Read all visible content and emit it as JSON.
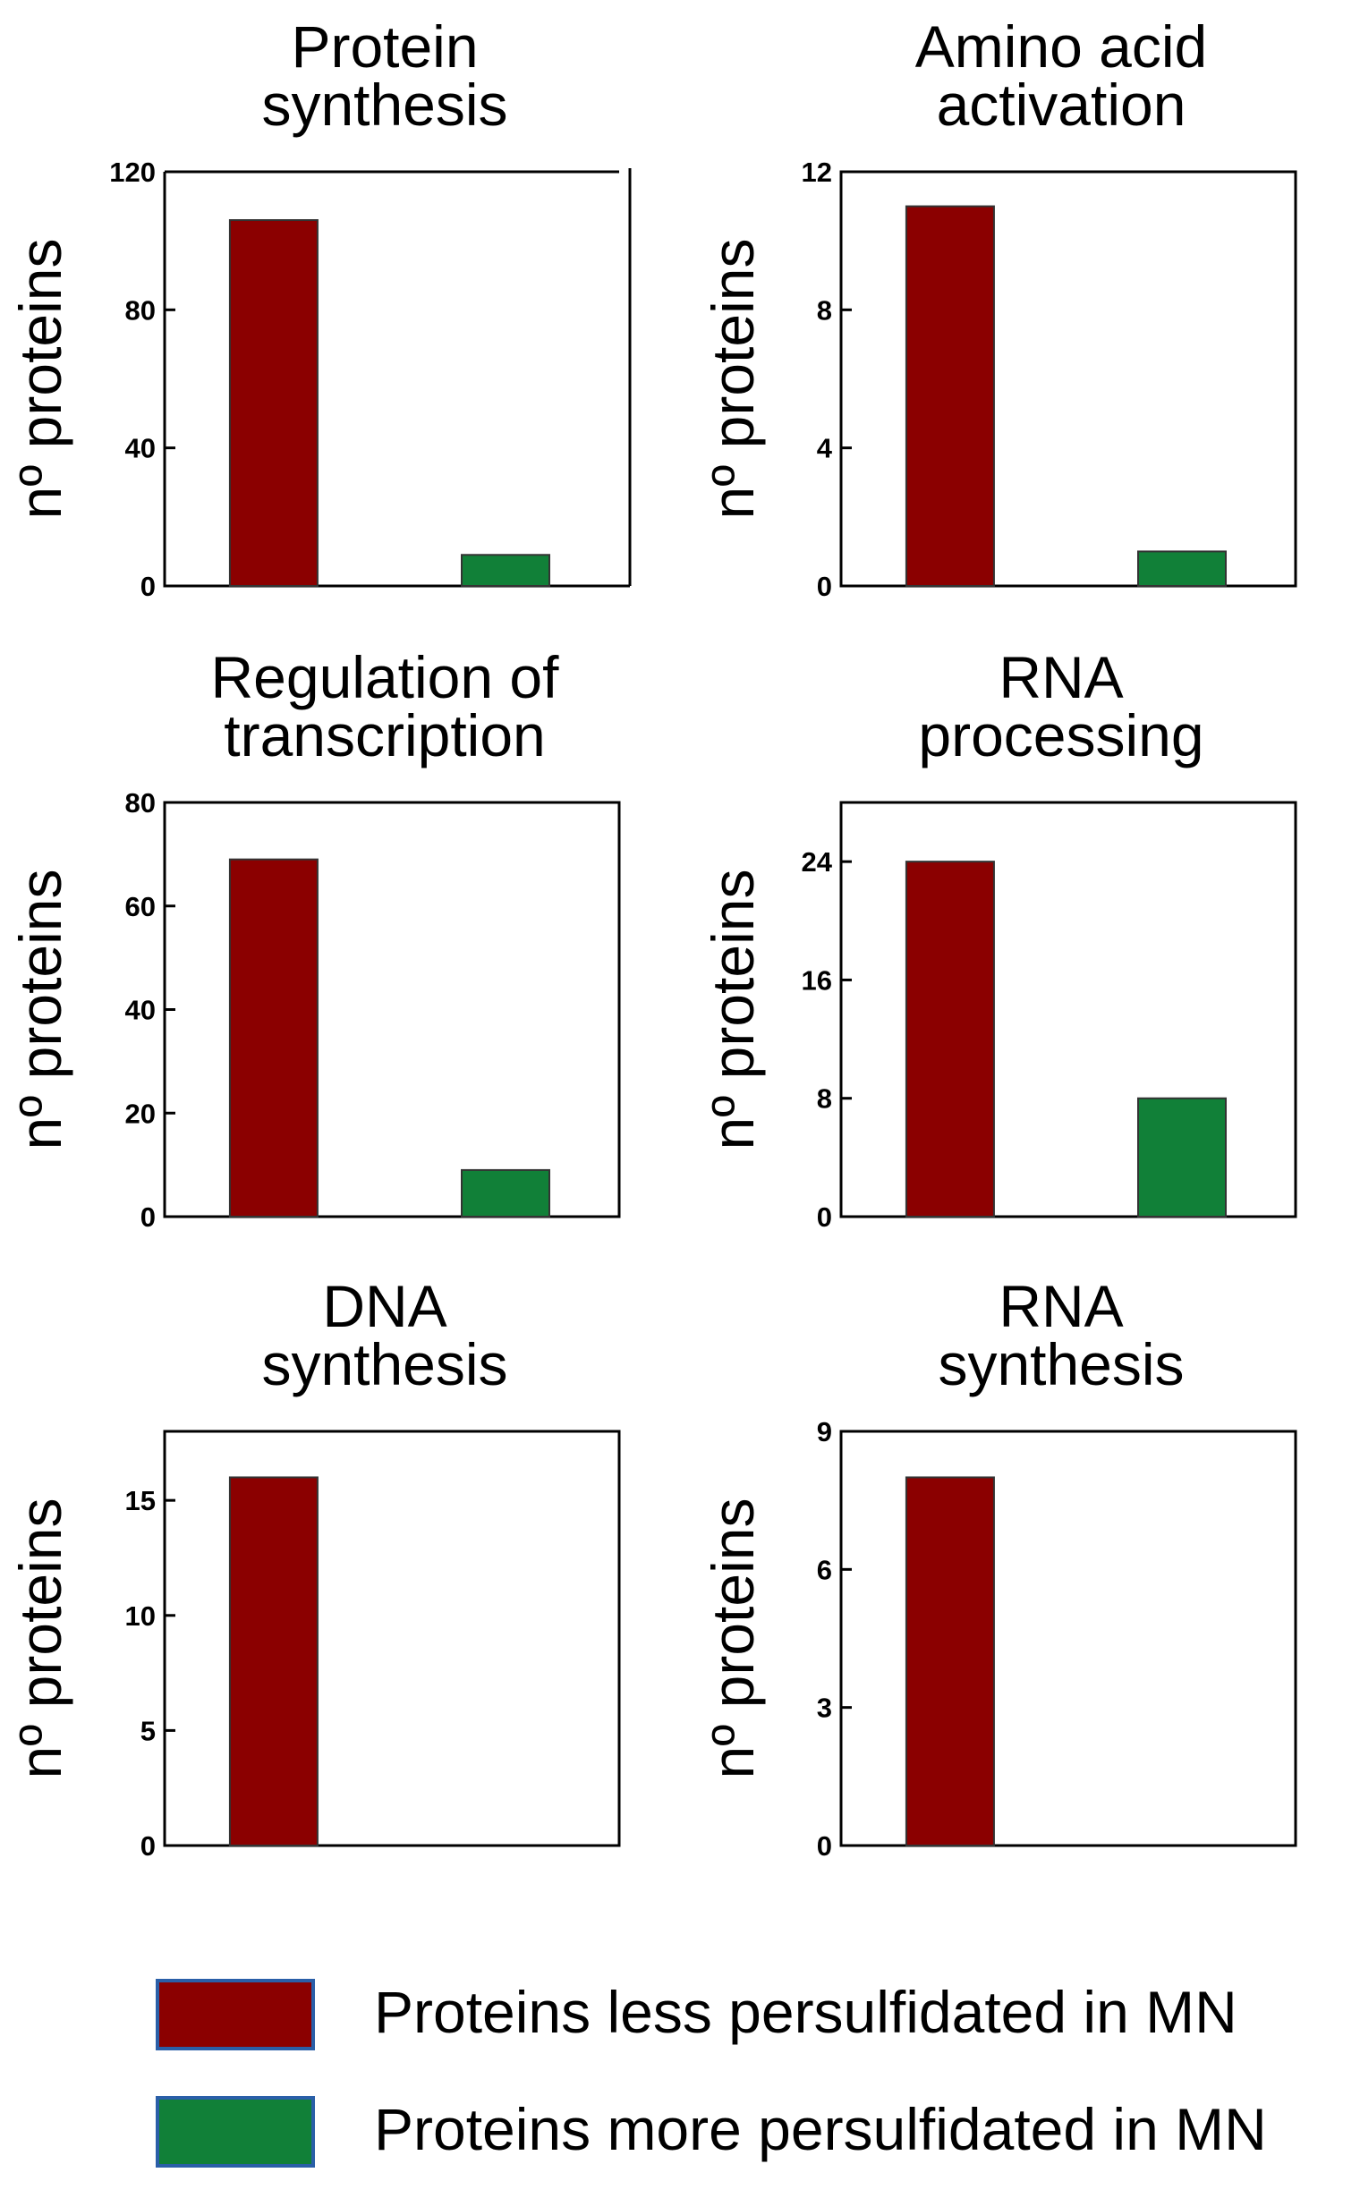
{
  "chart_data": [
    {
      "type": "bar",
      "title": [
        "Protein",
        "synthesis"
      ],
      "ylabel": "nº proteins",
      "categories": [
        "Proteins less persulfidated in MN",
        "Proteins more persulfidated in MN"
      ],
      "values": [
        106,
        9
      ],
      "ylim": [
        0,
        120
      ],
      "yticks": [
        0,
        40,
        80,
        120
      ]
    },
    {
      "type": "bar",
      "title": [
        "Amino acid",
        "activation"
      ],
      "ylabel": "nº proteins",
      "categories": [
        "Proteins less persulfidated in MN",
        "Proteins more persulfidated in MN"
      ],
      "values": [
        11,
        1
      ],
      "ylim": [
        0,
        12
      ],
      "yticks": [
        0,
        4,
        8,
        12
      ]
    },
    {
      "type": "bar",
      "title": [
        "Regulation of",
        "transcription"
      ],
      "ylabel": "nº proteins",
      "categories": [
        "Proteins less persulfidated in MN",
        "Proteins more persulfidated in MN"
      ],
      "values": [
        69,
        9
      ],
      "ylim": [
        0,
        80
      ],
      "yticks": [
        0,
        20,
        40,
        60,
        80
      ]
    },
    {
      "type": "bar",
      "title": [
        "RNA",
        "processing"
      ],
      "ylabel": "nº proteins",
      "categories": [
        "Proteins less persulfidated in MN",
        "Proteins more persulfidated in MN"
      ],
      "values": [
        24,
        8
      ],
      "ylim": [
        0,
        28
      ],
      "yticks": [
        0,
        8,
        16,
        24
      ]
    },
    {
      "type": "bar",
      "title": [
        "DNA",
        "synthesis"
      ],
      "ylabel": "nº proteins",
      "categories": [
        "Proteins less persulfidated in MN",
        "Proteins more persulfidated in MN"
      ],
      "values": [
        16,
        0
      ],
      "ylim": [
        0,
        18
      ],
      "yticks": [
        0,
        5,
        10,
        15
      ]
    },
    {
      "type": "bar",
      "title": [
        "RNA",
        "synthesis"
      ],
      "ylabel": "nº proteins",
      "categories": [
        "Proteins less persulfidated in MN",
        "Proteins more persulfidated in MN"
      ],
      "values": [
        8,
        0
      ],
      "ylim": [
        0,
        9
      ],
      "yticks": [
        0,
        3,
        6,
        9
      ]
    }
  ],
  "legend": {
    "items": [
      {
        "label": "Proteins less persulfidated in MN",
        "color": "#8b0000"
      },
      {
        "label": "Proteins more persulfidated in MN",
        "color": "#118038"
      }
    ]
  },
  "colors": {
    "less": "#8b0000",
    "more": "#118038",
    "legend_border": "#2a5fa8"
  }
}
